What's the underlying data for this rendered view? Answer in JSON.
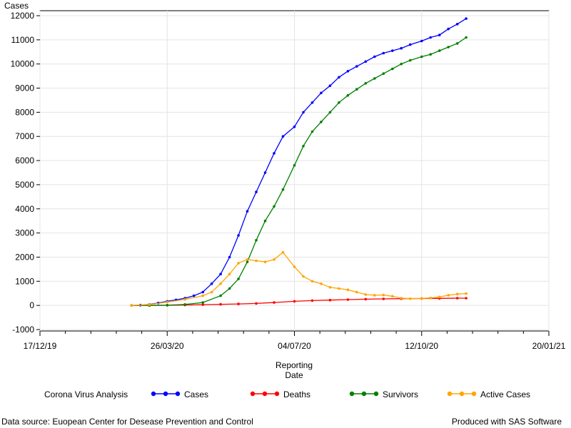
{
  "chart_data": {
    "type": "line",
    "title": "",
    "ylabel": "Cases",
    "xlabel_lines": [
      "Reporting",
      "Date"
    ],
    "ylim": [
      -1000,
      12000
    ],
    "yticks": [
      -1000,
      0,
      1000,
      2000,
      3000,
      4000,
      5000,
      6000,
      7000,
      8000,
      9000,
      10000,
      11000,
      12000
    ],
    "xlim": [
      "2019-12-17",
      "2021-01-20"
    ],
    "xticks": [
      {
        "date": "2019-12-17",
        "label": "17/12/19"
      },
      {
        "date": "2020-03-26",
        "label": "26/03/20"
      },
      {
        "date": "2020-07-04",
        "label": "04/07/20"
      },
      {
        "date": "2020-10-12",
        "label": "12/10/20"
      },
      {
        "date": "2021-01-20",
        "label": "20/01/21"
      }
    ],
    "grid": true,
    "legend_title": "Corona Virus Analysis",
    "legend_position": "bottom",
    "series": [
      {
        "name": "Cases",
        "color": "#0000ff",
        "points": [
          [
            "2020-02-27",
            0
          ],
          [
            "2020-03-05",
            10
          ],
          [
            "2020-03-12",
            40
          ],
          [
            "2020-03-19",
            100
          ],
          [
            "2020-03-26",
            170
          ],
          [
            "2020-04-02",
            230
          ],
          [
            "2020-04-09",
            300
          ],
          [
            "2020-04-16",
            400
          ],
          [
            "2020-04-23",
            550
          ],
          [
            "2020-04-30",
            900
          ],
          [
            "2020-05-07",
            1300
          ],
          [
            "2020-05-14",
            2000
          ],
          [
            "2020-05-21",
            2900
          ],
          [
            "2020-05-28",
            3900
          ],
          [
            "2020-06-04",
            4700
          ],
          [
            "2020-06-11",
            5500
          ],
          [
            "2020-06-18",
            6300
          ],
          [
            "2020-06-25",
            7000
          ],
          [
            "2020-07-04",
            7400
          ],
          [
            "2020-07-11",
            8000
          ],
          [
            "2020-07-18",
            8400
          ],
          [
            "2020-07-25",
            8800
          ],
          [
            "2020-08-01",
            9100
          ],
          [
            "2020-08-08",
            9450
          ],
          [
            "2020-08-15",
            9700
          ],
          [
            "2020-08-22",
            9900
          ],
          [
            "2020-08-29",
            10100
          ],
          [
            "2020-09-05",
            10300
          ],
          [
            "2020-09-12",
            10450
          ],
          [
            "2020-09-19",
            10550
          ],
          [
            "2020-09-26",
            10650
          ],
          [
            "2020-10-03",
            10800
          ],
          [
            "2020-10-12",
            10950
          ],
          [
            "2020-10-19",
            11100
          ],
          [
            "2020-10-26",
            11200
          ],
          [
            "2020-11-02",
            11450
          ],
          [
            "2020-11-09",
            11650
          ],
          [
            "2020-11-16",
            11880
          ]
        ]
      },
      {
        "name": "Deaths",
        "color": "#ff0000",
        "points": [
          [
            "2020-02-27",
            0
          ],
          [
            "2020-03-12",
            0
          ],
          [
            "2020-03-26",
            5
          ],
          [
            "2020-04-09",
            15
          ],
          [
            "2020-04-23",
            30
          ],
          [
            "2020-05-07",
            45
          ],
          [
            "2020-05-21",
            60
          ],
          [
            "2020-06-04",
            80
          ],
          [
            "2020-06-18",
            120
          ],
          [
            "2020-07-04",
            170
          ],
          [
            "2020-07-18",
            200
          ],
          [
            "2020-08-01",
            220
          ],
          [
            "2020-08-15",
            240
          ],
          [
            "2020-08-29",
            260
          ],
          [
            "2020-09-12",
            270
          ],
          [
            "2020-09-26",
            280
          ],
          [
            "2020-10-12",
            285
          ],
          [
            "2020-10-26",
            290
          ],
          [
            "2020-11-09",
            300
          ],
          [
            "2020-11-16",
            300
          ]
        ]
      },
      {
        "name": "Survivors",
        "color": "#008000",
        "points": [
          [
            "2020-02-27",
            0
          ],
          [
            "2020-03-12",
            0
          ],
          [
            "2020-03-26",
            10
          ],
          [
            "2020-04-09",
            40
          ],
          [
            "2020-04-23",
            120
          ],
          [
            "2020-05-07",
            400
          ],
          [
            "2020-05-14",
            700
          ],
          [
            "2020-05-21",
            1100
          ],
          [
            "2020-05-28",
            1800
          ],
          [
            "2020-06-04",
            2700
          ],
          [
            "2020-06-11",
            3500
          ],
          [
            "2020-06-18",
            4100
          ],
          [
            "2020-06-25",
            4800
          ],
          [
            "2020-07-04",
            5800
          ],
          [
            "2020-07-11",
            6600
          ],
          [
            "2020-07-18",
            7200
          ],
          [
            "2020-07-25",
            7600
          ],
          [
            "2020-08-01",
            8000
          ],
          [
            "2020-08-08",
            8400
          ],
          [
            "2020-08-15",
            8700
          ],
          [
            "2020-08-22",
            8950
          ],
          [
            "2020-08-29",
            9200
          ],
          [
            "2020-09-05",
            9400
          ],
          [
            "2020-09-12",
            9600
          ],
          [
            "2020-09-19",
            9800
          ],
          [
            "2020-09-26",
            10000
          ],
          [
            "2020-10-03",
            10150
          ],
          [
            "2020-10-12",
            10300
          ],
          [
            "2020-10-19",
            10400
          ],
          [
            "2020-10-26",
            10550
          ],
          [
            "2020-11-02",
            10700
          ],
          [
            "2020-11-09",
            10850
          ],
          [
            "2020-11-16",
            11100
          ]
        ]
      },
      {
        "name": "Active Cases",
        "color": "#ffa500",
        "points": [
          [
            "2020-02-27",
            0
          ],
          [
            "2020-03-12",
            30
          ],
          [
            "2020-03-26",
            140
          ],
          [
            "2020-04-09",
            250
          ],
          [
            "2020-04-23",
            400
          ],
          [
            "2020-04-30",
            550
          ],
          [
            "2020-05-07",
            900
          ],
          [
            "2020-05-14",
            1300
          ],
          [
            "2020-05-21",
            1750
          ],
          [
            "2020-05-28",
            1900
          ],
          [
            "2020-06-04",
            1850
          ],
          [
            "2020-06-11",
            1800
          ],
          [
            "2020-06-18",
            1900
          ],
          [
            "2020-06-25",
            2200
          ],
          [
            "2020-07-04",
            1600
          ],
          [
            "2020-07-11",
            1200
          ],
          [
            "2020-07-18",
            1000
          ],
          [
            "2020-07-25",
            900
          ],
          [
            "2020-08-01",
            750
          ],
          [
            "2020-08-08",
            700
          ],
          [
            "2020-08-15",
            650
          ],
          [
            "2020-08-22",
            550
          ],
          [
            "2020-08-29",
            450
          ],
          [
            "2020-09-05",
            420
          ],
          [
            "2020-09-12",
            430
          ],
          [
            "2020-09-19",
            380
          ],
          [
            "2020-09-26",
            300
          ],
          [
            "2020-10-03",
            280
          ],
          [
            "2020-10-12",
            290
          ],
          [
            "2020-10-19",
            310
          ],
          [
            "2020-10-26",
            350
          ],
          [
            "2020-11-02",
            420
          ],
          [
            "2020-11-09",
            470
          ],
          [
            "2020-11-16",
            490
          ]
        ]
      }
    ]
  },
  "footer": {
    "left": "Data source: Euopean Center for Desease Prevention and Control",
    "right": "Produced with SAS Software"
  }
}
